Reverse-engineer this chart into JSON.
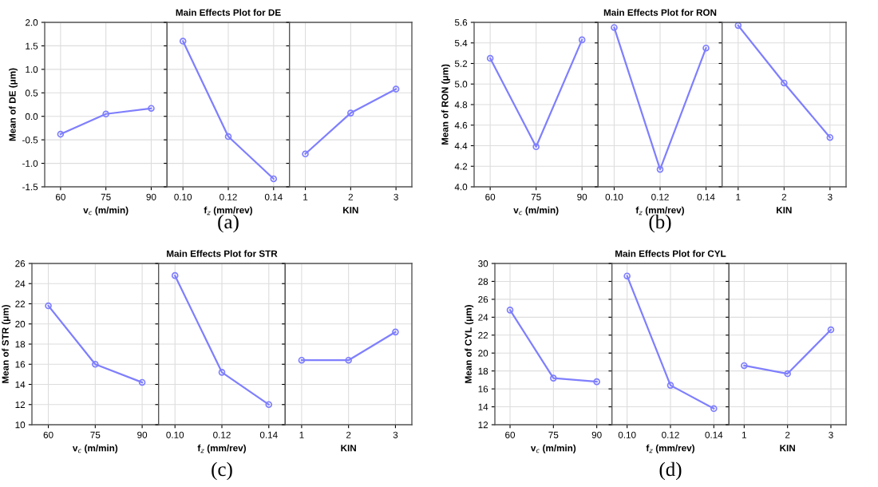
{
  "chart_data": [
    {
      "type": "line",
      "ylabel": "Mean of DE (μm)",
      "xlabel": "v$_{c}$ (m/min)",
      "categories": [
        "60",
        "75",
        "90"
      ],
      "values": [
        -0.38,
        0.05,
        0.17
      ],
      "color": "#7f7fff",
      "ylim": [
        -1.5,
        2.0
      ],
      "yticks": [
        {
          "value": -1.5,
          "label": "-1.5"
        },
        {
          "value": -1.0,
          "label": "-1.0"
        },
        {
          "value": -0.5,
          "label": "-0.5"
        },
        {
          "value": 0.0,
          "label": "0.0"
        },
        {
          "value": 0.5,
          "label": "0.5"
        },
        {
          "value": 1.0,
          "label": "1.0"
        },
        {
          "value": 1.5,
          "label": "1.5"
        },
        {
          "value": 2.0,
          "label": "2.0"
        }
      ],
      "grid": true,
      "marker": "circle"
    },
    {
      "type": "line",
      "title": "Main Effects Plot for DE",
      "annotations": [
        "(a)"
      ],
      "xlabel": "f$_{z}$ (mm/rev)",
      "categories": [
        "0.10",
        "0.12",
        "0.14"
      ],
      "values": [
        1.6,
        -0.43,
        -1.33
      ],
      "color": "#7f7fff",
      "ylim": [
        -1.5,
        2.0
      ],
      "yticks": [
        -1.5,
        -1.0,
        -0.5,
        0.0,
        0.5,
        1.0,
        1.5,
        2.0
      ],
      "tick_labels": "x",
      "grid": true,
      "marker": "circle"
    },
    {
      "type": "line",
      "xlabel": "KIN",
      "categories": [
        "1",
        "2",
        "3"
      ],
      "values": [
        -0.8,
        0.07,
        0.58
      ],
      "color": "#7f7fff",
      "ylim": [
        -1.5,
        2.0
      ],
      "yticks": [
        -1.5,
        -1.0,
        -0.5,
        0.0,
        0.5,
        1.0,
        1.5,
        2.0
      ],
      "tick_labels": "x",
      "grid": true,
      "marker": "circle"
    },
    {
      "type": "line",
      "ylabel": "Mean of RON (μm)",
      "xlabel": "v$_{c}$ (m/min)",
      "categories": [
        "60",
        "75",
        "90"
      ],
      "values": [
        5.25,
        4.39,
        5.43
      ],
      "color": "#7f7fff",
      "ylim": [
        4.0,
        5.6
      ],
      "yticks": [
        {
          "value": 4.0,
          "label": "4.0"
        },
        {
          "value": 4.2,
          "label": "4.2"
        },
        {
          "value": 4.4,
          "label": "4.4"
        },
        {
          "value": 4.6,
          "label": "4.6"
        },
        {
          "value": 4.8,
          "label": "4.8"
        },
        {
          "value": 5.0,
          "label": "5.0"
        },
        {
          "value": 5.2,
          "label": "5.2"
        },
        {
          "value": 5.4,
          "label": "5.4"
        },
        {
          "value": 5.6,
          "label": "5.6"
        }
      ],
      "grid": true,
      "marker": "circle"
    },
    {
      "type": "line",
      "title": "Main Effects Plot for RON",
      "annotations": [
        "(b)"
      ],
      "xlabel": "f$_{z}$ (mm/rev)",
      "categories": [
        "0.10",
        "0.12",
        "0.14"
      ],
      "values": [
        5.55,
        4.17,
        5.35
      ],
      "color": "#7f7fff",
      "ylim": [
        4.0,
        5.6
      ],
      "yticks": [
        4.0,
        4.2,
        4.4,
        4.6,
        4.8,
        5.0,
        5.2,
        5.4,
        5.6
      ],
      "tick_labels": "x",
      "grid": true,
      "marker": "circle"
    },
    {
      "type": "line",
      "xlabel": "KIN",
      "categories": [
        "1",
        "2",
        "3"
      ],
      "values": [
        5.57,
        5.01,
        4.48
      ],
      "color": "#7f7fff",
      "ylim": [
        4.0,
        5.6
      ],
      "yticks": [
        4.0,
        4.2,
        4.4,
        4.6,
        4.8,
        5.0,
        5.2,
        5.4,
        5.6
      ],
      "tick_labels": "x",
      "grid": true,
      "marker": "circle"
    },
    {
      "type": "line",
      "ylabel": "Mean of STR (μm)",
      "xlabel": "v$_{c}$ (m/min)",
      "categories": [
        "60",
        "75",
        "90"
      ],
      "values": [
        21.8,
        16.0,
        14.2
      ],
      "color": "#7f7fff",
      "ylim": [
        10,
        26
      ],
      "yticks": [
        10,
        12,
        14,
        16,
        18,
        20,
        22,
        24,
        26
      ],
      "grid": true,
      "marker": "circle"
    },
    {
      "type": "line",
      "title": "Main Effects Plot for STR",
      "annotations": [
        "(c)"
      ],
      "xlabel": "f$_{z}$ (mm/rev)",
      "categories": [
        "0.10",
        "0.12",
        "0.14"
      ],
      "values": [
        24.8,
        15.2,
        12.0
      ],
      "color": "#7f7fff",
      "ylim": [
        10,
        26
      ],
      "yticks": [
        10,
        12,
        14,
        16,
        18,
        20,
        22,
        24,
        26
      ],
      "tick_labels": "x",
      "grid": true,
      "marker": "circle"
    },
    {
      "type": "line",
      "xlabel": "KIN",
      "categories": [
        "1",
        "2",
        "3"
      ],
      "values": [
        16.4,
        16.4,
        19.2
      ],
      "color": "#7f7fff",
      "ylim": [
        10,
        26
      ],
      "yticks": [
        10,
        12,
        14,
        16,
        18,
        20,
        22,
        24,
        26
      ],
      "tick_labels": "x",
      "grid": true,
      "marker": "circle"
    },
    {
      "type": "line",
      "ylabel": "Mean of CYL (μm)",
      "xlabel": "v$_{c}$ (m/min)",
      "categories": [
        "60",
        "75",
        "90"
      ],
      "values": [
        24.8,
        17.2,
        16.8
      ],
      "color": "#7f7fff",
      "ylim": [
        12,
        30
      ],
      "yticks": [
        12,
        14,
        16,
        18,
        20,
        22,
        24,
        26,
        28,
        30
      ],
      "grid": true,
      "marker": "circle"
    },
    {
      "type": "line",
      "title": "Main Effects Plot for CYL",
      "annotations": [
        "(d)"
      ],
      "xlabel": "f$_{z}$ (mm/rev)",
      "categories": [
        "0.10",
        "0.12",
        "0.14"
      ],
      "values": [
        28.6,
        16.4,
        13.8
      ],
      "color": "#7f7fff",
      "ylim": [
        12,
        30
      ],
      "yticks": [
        12,
        14,
        16,
        18,
        20,
        22,
        24,
        26,
        28,
        30
      ],
      "tick_labels": "x",
      "grid": true,
      "marker": "circle"
    },
    {
      "type": "line",
      "xlabel": "KIN",
      "categories": [
        "1",
        "2",
        "3"
      ],
      "values": [
        18.6,
        17.7,
        22.6
      ],
      "color": "#7f7fff",
      "ylim": [
        12,
        30
      ],
      "yticks": [
        12,
        14,
        16,
        18,
        20,
        22,
        24,
        26,
        28,
        30
      ],
      "tick_labels": "x",
      "grid": true,
      "marker": "circle"
    }
  ]
}
